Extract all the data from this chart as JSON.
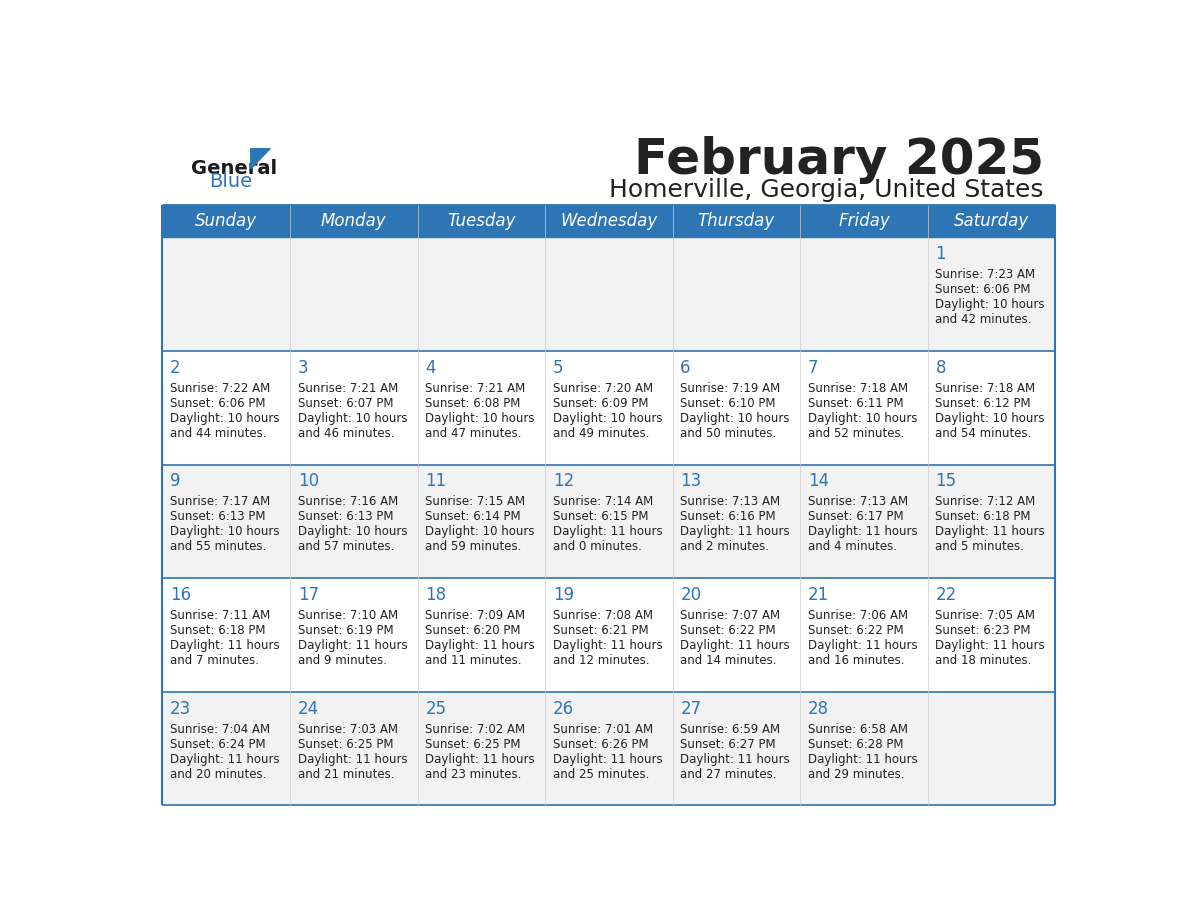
{
  "title": "February 2025",
  "subtitle": "Homerville, Georgia, United States",
  "header_bg": "#2E75B6",
  "header_text_color": "#FFFFFF",
  "cell_bg_odd": "#F2F2F2",
  "cell_bg_even": "#FFFFFF",
  "border_color": "#2E75B6",
  "day_num_color": "#2E75B6",
  "text_color": "#222222",
  "days_of_week": [
    "Sunday",
    "Monday",
    "Tuesday",
    "Wednesday",
    "Thursday",
    "Friday",
    "Saturday"
  ],
  "logo_general_color": "#1a1a1a",
  "logo_blue_color": "#2E75B6",
  "logo_triangle_color": "#2E75B6",
  "calendar_data": [
    [
      {
        "day": null,
        "sunrise": null,
        "sunset": null,
        "daylight_line1": null,
        "daylight_line2": null
      },
      {
        "day": null,
        "sunrise": null,
        "sunset": null,
        "daylight_line1": null,
        "daylight_line2": null
      },
      {
        "day": null,
        "sunrise": null,
        "sunset": null,
        "daylight_line1": null,
        "daylight_line2": null
      },
      {
        "day": null,
        "sunrise": null,
        "sunset": null,
        "daylight_line1": null,
        "daylight_line2": null
      },
      {
        "day": null,
        "sunrise": null,
        "sunset": null,
        "daylight_line1": null,
        "daylight_line2": null
      },
      {
        "day": null,
        "sunrise": null,
        "sunset": null,
        "daylight_line1": null,
        "daylight_line2": null
      },
      {
        "day": "1",
        "sunrise": "7:23 AM",
        "sunset": "6:06 PM",
        "daylight_line1": "Daylight: 10 hours",
        "daylight_line2": "and 42 minutes."
      }
    ],
    [
      {
        "day": "2",
        "sunrise": "7:22 AM",
        "sunset": "6:06 PM",
        "daylight_line1": "Daylight: 10 hours",
        "daylight_line2": "and 44 minutes."
      },
      {
        "day": "3",
        "sunrise": "7:21 AM",
        "sunset": "6:07 PM",
        "daylight_line1": "Daylight: 10 hours",
        "daylight_line2": "and 46 minutes."
      },
      {
        "day": "4",
        "sunrise": "7:21 AM",
        "sunset": "6:08 PM",
        "daylight_line1": "Daylight: 10 hours",
        "daylight_line2": "and 47 minutes."
      },
      {
        "day": "5",
        "sunrise": "7:20 AM",
        "sunset": "6:09 PM",
        "daylight_line1": "Daylight: 10 hours",
        "daylight_line2": "and 49 minutes."
      },
      {
        "day": "6",
        "sunrise": "7:19 AM",
        "sunset": "6:10 PM",
        "daylight_line1": "Daylight: 10 hours",
        "daylight_line2": "and 50 minutes."
      },
      {
        "day": "7",
        "sunrise": "7:18 AM",
        "sunset": "6:11 PM",
        "daylight_line1": "Daylight: 10 hours",
        "daylight_line2": "and 52 minutes."
      },
      {
        "day": "8",
        "sunrise": "7:18 AM",
        "sunset": "6:12 PM",
        "daylight_line1": "Daylight: 10 hours",
        "daylight_line2": "and 54 minutes."
      }
    ],
    [
      {
        "day": "9",
        "sunrise": "7:17 AM",
        "sunset": "6:13 PM",
        "daylight_line1": "Daylight: 10 hours",
        "daylight_line2": "and 55 minutes."
      },
      {
        "day": "10",
        "sunrise": "7:16 AM",
        "sunset": "6:13 PM",
        "daylight_line1": "Daylight: 10 hours",
        "daylight_line2": "and 57 minutes."
      },
      {
        "day": "11",
        "sunrise": "7:15 AM",
        "sunset": "6:14 PM",
        "daylight_line1": "Daylight: 10 hours",
        "daylight_line2": "and 59 minutes."
      },
      {
        "day": "12",
        "sunrise": "7:14 AM",
        "sunset": "6:15 PM",
        "daylight_line1": "Daylight: 11 hours",
        "daylight_line2": "and 0 minutes."
      },
      {
        "day": "13",
        "sunrise": "7:13 AM",
        "sunset": "6:16 PM",
        "daylight_line1": "Daylight: 11 hours",
        "daylight_line2": "and 2 minutes."
      },
      {
        "day": "14",
        "sunrise": "7:13 AM",
        "sunset": "6:17 PM",
        "daylight_line1": "Daylight: 11 hours",
        "daylight_line2": "and 4 minutes."
      },
      {
        "day": "15",
        "sunrise": "7:12 AM",
        "sunset": "6:18 PM",
        "daylight_line1": "Daylight: 11 hours",
        "daylight_line2": "and 5 minutes."
      }
    ],
    [
      {
        "day": "16",
        "sunrise": "7:11 AM",
        "sunset": "6:18 PM",
        "daylight_line1": "Daylight: 11 hours",
        "daylight_line2": "and 7 minutes."
      },
      {
        "day": "17",
        "sunrise": "7:10 AM",
        "sunset": "6:19 PM",
        "daylight_line1": "Daylight: 11 hours",
        "daylight_line2": "and 9 minutes."
      },
      {
        "day": "18",
        "sunrise": "7:09 AM",
        "sunset": "6:20 PM",
        "daylight_line1": "Daylight: 11 hours",
        "daylight_line2": "and 11 minutes."
      },
      {
        "day": "19",
        "sunrise": "7:08 AM",
        "sunset": "6:21 PM",
        "daylight_line1": "Daylight: 11 hours",
        "daylight_line2": "and 12 minutes."
      },
      {
        "day": "20",
        "sunrise": "7:07 AM",
        "sunset": "6:22 PM",
        "daylight_line1": "Daylight: 11 hours",
        "daylight_line2": "and 14 minutes."
      },
      {
        "day": "21",
        "sunrise": "7:06 AM",
        "sunset": "6:22 PM",
        "daylight_line1": "Daylight: 11 hours",
        "daylight_line2": "and 16 minutes."
      },
      {
        "day": "22",
        "sunrise": "7:05 AM",
        "sunset": "6:23 PM",
        "daylight_line1": "Daylight: 11 hours",
        "daylight_line2": "and 18 minutes."
      }
    ],
    [
      {
        "day": "23",
        "sunrise": "7:04 AM",
        "sunset": "6:24 PM",
        "daylight_line1": "Daylight: 11 hours",
        "daylight_line2": "and 20 minutes."
      },
      {
        "day": "24",
        "sunrise": "7:03 AM",
        "sunset": "6:25 PM",
        "daylight_line1": "Daylight: 11 hours",
        "daylight_line2": "and 21 minutes."
      },
      {
        "day": "25",
        "sunrise": "7:02 AM",
        "sunset": "6:25 PM",
        "daylight_line1": "Daylight: 11 hours",
        "daylight_line2": "and 23 minutes."
      },
      {
        "day": "26",
        "sunrise": "7:01 AM",
        "sunset": "6:26 PM",
        "daylight_line1": "Daylight: 11 hours",
        "daylight_line2": "and 25 minutes."
      },
      {
        "day": "27",
        "sunrise": "6:59 AM",
        "sunset": "6:27 PM",
        "daylight_line1": "Daylight: 11 hours",
        "daylight_line2": "and 27 minutes."
      },
      {
        "day": "28",
        "sunrise": "6:58 AM",
        "sunset": "6:28 PM",
        "daylight_line1": "Daylight: 11 hours",
        "daylight_line2": "and 29 minutes."
      },
      {
        "day": null,
        "sunrise": null,
        "sunset": null,
        "daylight_line1": null,
        "daylight_line2": null
      }
    ]
  ]
}
